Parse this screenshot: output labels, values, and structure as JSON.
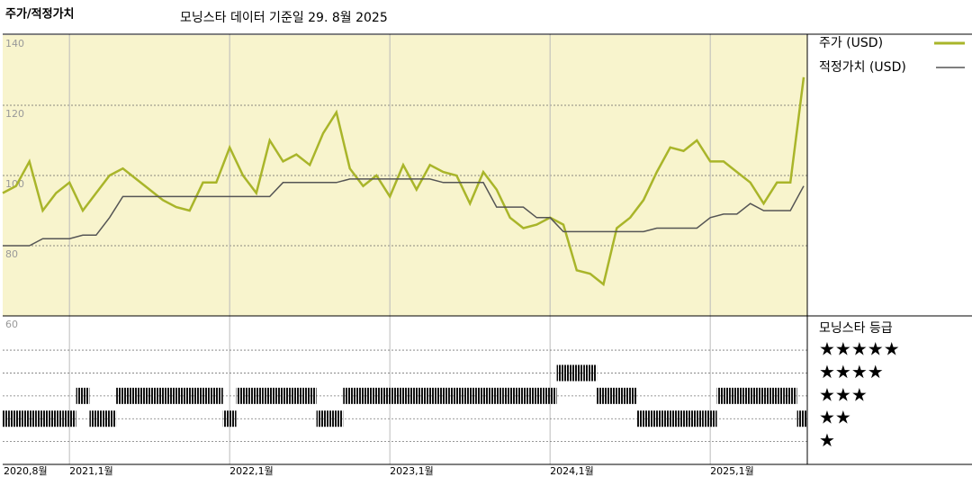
{
  "chart_data": [
    {
      "type": "line",
      "title": "주가/적정가치",
      "subtitle": "모닝스타 데이터 기준일 29. 8월 2025",
      "x": [
        "2020-08",
        "2020-09",
        "2020-10",
        "2020-11",
        "2020-12",
        "2021-01",
        "2021-02",
        "2021-03",
        "2021-04",
        "2021-05",
        "2021-06",
        "2021-07",
        "2021-08",
        "2021-09",
        "2021-10",
        "2021-11",
        "2021-12",
        "2022-01",
        "2022-02",
        "2022-03",
        "2022-04",
        "2022-05",
        "2022-06",
        "2022-07",
        "2022-08",
        "2022-09",
        "2022-10",
        "2022-11",
        "2022-12",
        "2023-01",
        "2023-02",
        "2023-03",
        "2023-04",
        "2023-05",
        "2023-06",
        "2023-07",
        "2023-08",
        "2023-09",
        "2023-10",
        "2023-11",
        "2023-12",
        "2024-01",
        "2024-02",
        "2024-03",
        "2024-04",
        "2024-05",
        "2024-06",
        "2024-07",
        "2024-08",
        "2024-09",
        "2024-10",
        "2024-11",
        "2024-12",
        "2025-01",
        "2025-02",
        "2025-03",
        "2025-04",
        "2025-05",
        "2025-06",
        "2025-07",
        "2025-08"
      ],
      "xticks": [
        {
          "value": "2020-08",
          "label": "2020,8월"
        },
        {
          "value": "2021-01",
          "label": "2021,1월"
        },
        {
          "value": "2022-01",
          "label": "2022,1월"
        },
        {
          "value": "2023-01",
          "label": "2023,1월"
        },
        {
          "value": "2024-01",
          "label": "2024,1월"
        },
        {
          "value": "2025-01",
          "label": "2025,1월"
        }
      ],
      "series": [
        {
          "name": "주가 (USD)",
          "color": "#a9b52a",
          "values": [
            95,
            97,
            104,
            90,
            95,
            98,
            90,
            95,
            100,
            102,
            99,
            96,
            93,
            91,
            90,
            98,
            98,
            108,
            100,
            95,
            110,
            104,
            106,
            103,
            112,
            118,
            102,
            97,
            100,
            94,
            103,
            96,
            103,
            101,
            100,
            92,
            101,
            96,
            88,
            85,
            86,
            88,
            86,
            73,
            72,
            69,
            85,
            88,
            93,
            101,
            108,
            107,
            110,
            104,
            104,
            101,
            98,
            92,
            98,
            98,
            128
          ]
        },
        {
          "name": "적정가치 (USD)",
          "color": "#555555",
          "values": [
            80,
            80,
            80,
            82,
            82,
            82,
            83,
            83,
            88,
            94,
            94,
            94,
            94,
            94,
            94,
            94,
            94,
            94,
            94,
            94,
            94,
            98,
            98,
            98,
            98,
            98,
            99,
            99,
            99,
            99,
            99,
            99,
            99,
            98,
            98,
            98,
            98,
            91,
            91,
            91,
            88,
            88,
            84,
            84,
            84,
            84,
            84,
            84,
            84,
            85,
            85,
            85,
            85,
            88,
            89,
            89,
            92,
            90,
            90,
            90,
            97
          ]
        }
      ],
      "ylim": [
        60,
        140
      ],
      "yticks": [
        60,
        80,
        100,
        120,
        140
      ],
      "grid": true,
      "background": "#f8f4cd"
    },
    {
      "type": "rating",
      "title": "모닝스타 등급",
      "color": "#000000",
      "values": [
        2,
        2,
        2,
        2,
        2,
        2,
        3,
        2,
        2,
        3,
        3,
        3,
        3,
        3,
        3,
        3,
        3,
        2,
        3,
        3,
        3,
        3,
        3,
        3,
        2,
        2,
        3,
        3,
        3,
        3,
        3,
        3,
        3,
        3,
        3,
        3,
        3,
        3,
        3,
        3,
        3,
        3,
        4,
        4,
        4,
        3,
        3,
        3,
        2,
        2,
        2,
        2,
        2,
        2,
        3,
        3,
        3,
        3,
        3,
        3,
        2
      ],
      "ylim": [
        0,
        6.5
      ],
      "yticks": [
        {
          "value": 5,
          "label": "★★★★★"
        },
        {
          "value": 4,
          "label": "★★★★"
        },
        {
          "value": 3,
          "label": "★★★"
        },
        {
          "value": 2,
          "label": "★★"
        },
        {
          "value": 1,
          "label": "★"
        }
      ]
    }
  ]
}
